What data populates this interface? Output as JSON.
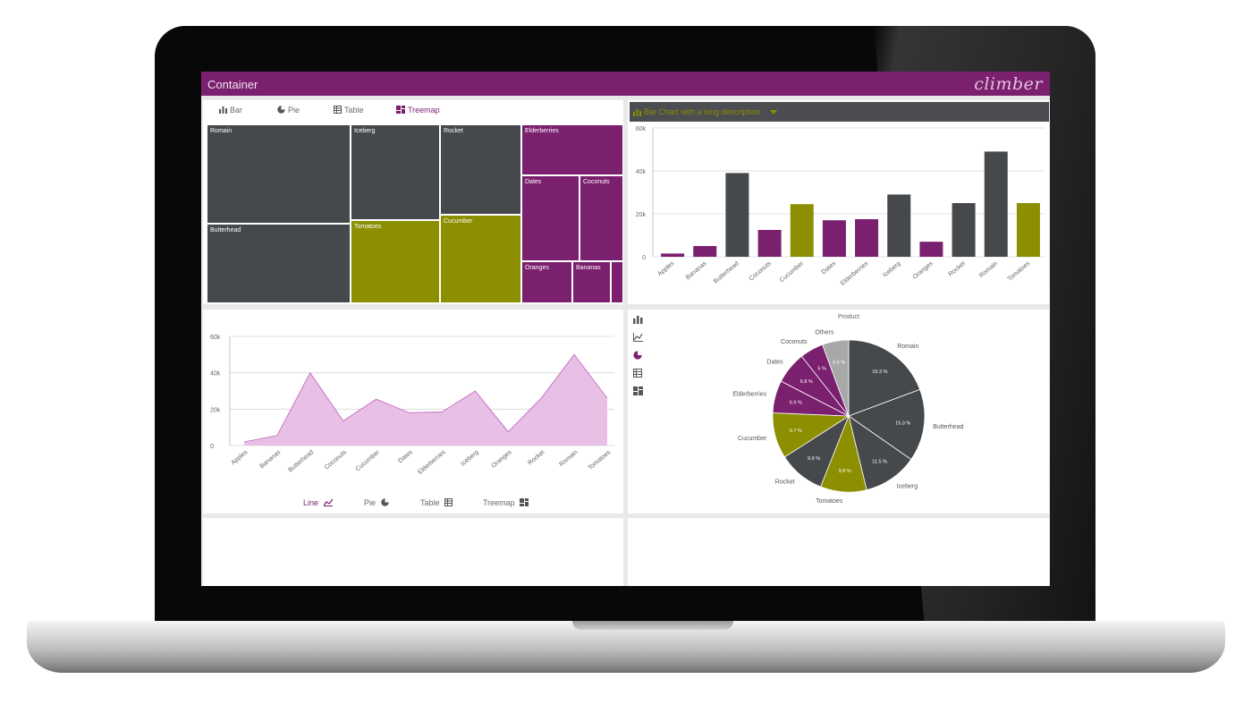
{
  "app": {
    "title": "Container",
    "brand": "climber"
  },
  "colors": {
    "purple": "#7b1f6f",
    "gray": "#46494c",
    "olive": "#8b8f00",
    "area": "#e8c0e6",
    "area_line": "#c874c4",
    "light_gray": "#a8a8a8"
  },
  "tabs_top": [
    {
      "label": "Bar",
      "icon": "bar-chart-icon"
    },
    {
      "label": "Pie",
      "icon": "pie-chart-icon"
    },
    {
      "label": "Table",
      "icon": "table-icon"
    },
    {
      "label": "Treemap",
      "icon": "treemap-icon",
      "active": true
    }
  ],
  "tabs_bottom": [
    {
      "label": "Line",
      "icon": "line-chart-icon",
      "active": true
    },
    {
      "label": "Pie",
      "icon": "pie-chart-icon"
    },
    {
      "label": "Table",
      "icon": "table-icon"
    },
    {
      "label": "Treemap",
      "icon": "treemap-icon"
    }
  ],
  "side_icons": [
    "bar-chart-icon",
    "line-chart-icon",
    "pie-chart-icon",
    "table-icon",
    "treemap-icon"
  ],
  "bar_header": {
    "label": "Bar Chart with a long description"
  },
  "treemap": {
    "cells": [
      {
        "label": "Romain",
        "color": "gray"
      },
      {
        "label": "Butterhead",
        "color": "gray"
      },
      {
        "label": "Iceberg",
        "color": "gray"
      },
      {
        "label": "Tomatoes",
        "color": "olive"
      },
      {
        "label": "Rocket",
        "color": "gray"
      },
      {
        "label": "Cucumber",
        "color": "olive"
      },
      {
        "label": "Elderberries",
        "color": "purple"
      },
      {
        "label": "Dates",
        "color": "purple"
      },
      {
        "label": "Coconuts",
        "color": "purple"
      },
      {
        "label": "Oranges",
        "color": "purple"
      },
      {
        "label": "Bananas",
        "color": "purple"
      },
      {
        "label": "",
        "color": "purple"
      }
    ]
  },
  "pie": {
    "title": "Product"
  },
  "chart_data": [
    {
      "type": "bar",
      "title": "Bar Chart with a long description",
      "categories": [
        "Apples",
        "Bananas",
        "Butterhead",
        "Coconuts",
        "Cucumber",
        "Dates",
        "Elderberries",
        "Iceberg",
        "Oranges",
        "Rocket",
        "Romain",
        "Tomatoes"
      ],
      "values": [
        1500,
        5000,
        39000,
        12500,
        24500,
        17000,
        17500,
        29000,
        7000,
        25000,
        49000,
        25000
      ],
      "colors": [
        "purple",
        "purple",
        "gray",
        "purple",
        "olive",
        "purple",
        "purple",
        "gray",
        "purple",
        "gray",
        "gray",
        "olive"
      ],
      "yticks": [
        "60k",
        "40k",
        "20k",
        "0"
      ],
      "ylim": [
        0,
        60000
      ],
      "grid": true
    },
    {
      "type": "area",
      "categories": [
        "Apples",
        "Bananas",
        "Butterhead",
        "Coconuts",
        "Cucumber",
        "Dates",
        "Elderberries",
        "Iceberg",
        "Oranges",
        "Rocket",
        "Romain",
        "Tomatoes"
      ],
      "values": [
        2000,
        5500,
        40000,
        13500,
        25500,
        18000,
        18500,
        30000,
        7500,
        26000,
        50000,
        26000
      ],
      "yticks": [
        "60k",
        "40k",
        "20k",
        "0"
      ],
      "ylim": [
        0,
        60000
      ],
      "grid": true
    },
    {
      "type": "pie",
      "title": "Product",
      "slices": [
        {
          "label": "Romain",
          "value": 19.3,
          "display": "19.3 %",
          "color": "gray"
        },
        {
          "label": "Butterhead",
          "value": 15.3,
          "display": "15.3 %",
          "color": "gray"
        },
        {
          "label": "Iceberg",
          "value": 11.5,
          "display": "11.5 %",
          "color": "gray"
        },
        {
          "label": "Tomatoes",
          "value": 9.8,
          "display": "9.8 %",
          "color": "olive"
        },
        {
          "label": "Rocket",
          "value": 9.9,
          "display": "9.9 %",
          "color": "gray"
        },
        {
          "label": "Cucumber",
          "value": 9.7,
          "display": "9.7 %",
          "color": "olive"
        },
        {
          "label": "Elderberries",
          "value": 6.9,
          "display": "6.9 %",
          "color": "purple"
        },
        {
          "label": "Dates",
          "value": 6.8,
          "display": "6.8 %",
          "color": "purple"
        },
        {
          "label": "Coconuts",
          "value": 5,
          "display": "5 %",
          "color": "purple"
        },
        {
          "label": "Others",
          "value": 5.6,
          "display": "5.6 %",
          "color": "light_gray"
        }
      ]
    }
  ]
}
